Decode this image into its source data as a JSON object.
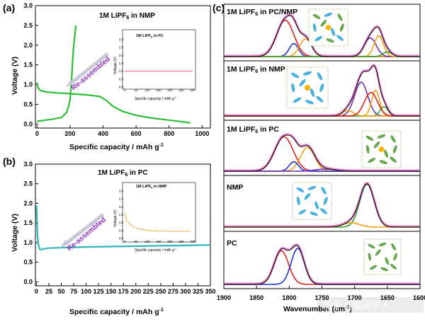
{
  "panel_a": {
    "letter": "(a)",
    "title": "1M LiPF6 in NMP",
    "ylabel": "Voltage (V)",
    "xlabel": "Specific capacity / mAh g-1",
    "xticks": [
      "0",
      "200",
      "400",
      "600",
      "800",
      "1000"
    ],
    "yticks": [
      "0.0",
      "0.5",
      "1.0",
      "1.5",
      "2.0",
      "2.5",
      "3.0"
    ],
    "arrow_label": "Re-assembled",
    "curve_color": "#2ebd34",
    "inset": {
      "title": "1M LiPF6 in PC",
      "ylabel": "Voltage (V)",
      "xlabel": "Specific capacity / mAh g-1",
      "xticks": [
        "0",
        "50",
        "100",
        "150",
        "200",
        "250",
        "300"
      ],
      "yticks": [
        "0.0",
        "0.5",
        "1.0",
        "1.5",
        "2.0",
        "2.5",
        "3.0"
      ],
      "curve_color": "#e0506e"
    }
  },
  "panel_b": {
    "letter": "(b)",
    "title": "1M LiPF6 in PC",
    "ylabel": "Voltage (V)",
    "xlabel": "Specific capacity / mAh g-1",
    "xticks": [
      "0",
      "25",
      "50",
      "75",
      "100",
      "125",
      "150",
      "175",
      "200",
      "225",
      "250",
      "275",
      "300",
      "325",
      "350"
    ],
    "yticks": [
      "0.0",
      "0.5",
      "1.0",
      "1.5",
      "2.0",
      "2.5",
      "3.0"
    ],
    "arrow_label": "Re-assembled",
    "curve_color": "#2bb5b8",
    "inset": {
      "title": "1M LiPF6 in NMP",
      "ylabel": "Voltage (V)",
      "xlabel": "Specific capacity / mAh g-1",
      "xticks": [
        "0",
        "50",
        "100",
        "150",
        "200",
        "250",
        "300"
      ],
      "yticks": [
        "0.0",
        "0.5",
        "1.0",
        "1.5",
        "2.0",
        "2.5",
        "3.0"
      ],
      "curve_color": "#f0a030"
    }
  },
  "panel_c": {
    "letter": "(c)",
    "xlabel": "Wavenumber (cm-1)",
    "xticks": [
      "1900",
      "1850",
      "1800",
      "1750",
      "1700",
      "1650",
      "1600"
    ],
    "subpanels": [
      "1M LiPF6 in PC/NMP",
      "1M LiPF6 in NMP",
      "1M LiPF6 in PC",
      "NMP",
      "PC"
    ],
    "colors": {
      "fit": "#e060c0",
      "measured": "#000000",
      "pc_free": "#e02020",
      "pc_bound": "#2030d0",
      "nmp_bound": "#f0a010",
      "nmp_free": "#30a030",
      "purple": "#7030b0"
    }
  },
  "watermark": "知乎 @能源学人",
  "chart_data": [
    {
      "type": "line",
      "title": "1M LiPF6 in NMP",
      "xlabel": "Specific capacity / mAh g-1",
      "ylabel": "Voltage (V)",
      "xlim": [
        0,
        1000
      ],
      "ylim": [
        -0.1,
        3.0
      ],
      "series": [
        {
          "x": [
            0,
            5,
            20,
            60,
            120,
            200,
            300,
            380,
            420,
            460,
            520,
            600,
            700,
            800,
            880,
            930
          ],
          "y": [
            1.05,
            0.92,
            0.85,
            0.81,
            0.79,
            0.77,
            0.74,
            0.7,
            0.6,
            0.45,
            0.32,
            0.22,
            0.15,
            0.1,
            0.06,
            0.03
          ]
        },
        {
          "x": [
            0,
            50,
            100,
            150,
            180,
            200,
            210,
            220,
            235
          ],
          "y": [
            0.07,
            0.1,
            0.13,
            0.17,
            0.3,
            0.6,
            1.2,
            1.9,
            2.5
          ]
        }
      ]
    },
    {
      "type": "line",
      "title": "1M LiPF6 in PC",
      "xlabel": "Specific capacity / mAh g-1",
      "ylabel": "Voltage (V)",
      "xlim": [
        0,
        300
      ],
      "ylim": [
        0,
        3.0
      ],
      "series": [
        {
          "x": [
            0,
            300
          ],
          "y": [
            1.0,
            1.0
          ]
        }
      ]
    },
    {
      "type": "line",
      "title": "1M LiPF6 in PC",
      "xlabel": "Specific capacity / mAh g-1",
      "ylabel": "Voltage (V)",
      "xlim": [
        0,
        350
      ],
      "ylim": [
        -0.1,
        3.0
      ],
      "series": [
        {
          "x": [
            0,
            2,
            4,
            7,
            10,
            15,
            25,
            50,
            100,
            150,
            200,
            250,
            300,
            350
          ],
          "y": [
            1.95,
            1.2,
            0.95,
            0.83,
            0.82,
            0.84,
            0.86,
            0.87,
            0.89,
            0.9,
            0.91,
            0.92,
            0.93,
            0.94
          ]
        }
      ]
    },
    {
      "type": "line",
      "title": "1M LiPF6 in NMP",
      "xlabel": "Specific capacity / mAh g-1",
      "ylabel": "Voltage (V)",
      "xlim": [
        0,
        300
      ],
      "ylim": [
        0,
        3.0
      ],
      "series": [
        {
          "x": [
            0,
            10,
            30,
            60,
            100,
            150,
            200,
            250,
            290
          ],
          "y": [
            1.6,
            1.1,
            0.8,
            0.6,
            0.5,
            0.46,
            0.45,
            0.45,
            0.45
          ]
        }
      ]
    },
    {
      "type": "line",
      "title": "",
      "xlabel": "Wavenumber (cm-1)",
      "ylabel": "",
      "xlim": [
        1900,
        1600
      ],
      "series": [
        {
          "name": "1M LiPF6 in PC/NMP",
          "peaks": [
            [
              1806,
              1.0
            ],
            [
              1775,
              0.45
            ],
            [
              1665,
              0.55
            ],
            [
              1680,
              0.4
            ]
          ]
        },
        {
          "name": "1M LiPF6 in NMP",
          "peaks": [
            [
              1683,
              1.0
            ],
            [
              1665,
              0.6
            ],
            [
              1700,
              0.2
            ]
          ]
        },
        {
          "name": "1M LiPF6 in PC",
          "peaks": [
            [
              1806,
              1.0
            ],
            [
              1770,
              0.55
            ],
            [
              1795,
              0.3
            ]
          ]
        },
        {
          "name": "NMP",
          "peaks": [
            [
              1680,
              1.0
            ],
            [
              1700,
              0.15
            ]
          ]
        },
        {
          "name": "PC",
          "peaks": [
            [
              1810,
              0.9
            ],
            [
              1785,
              0.75
            ]
          ]
        }
      ]
    }
  ]
}
